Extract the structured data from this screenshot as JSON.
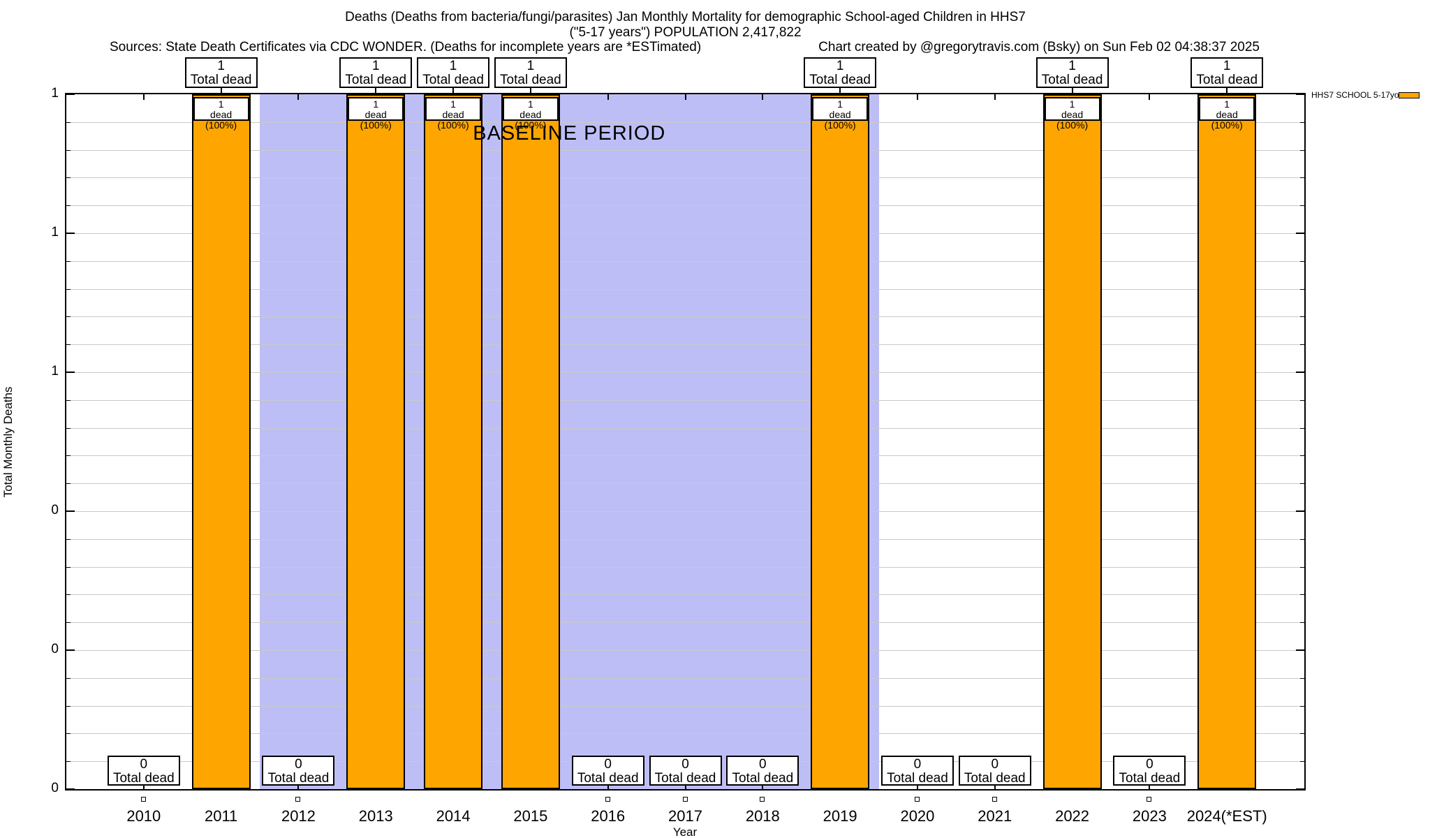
{
  "header": {
    "title_line1": "Deaths (Deaths from bacteria/fungi/parasites) Jan Monthly Mortality for demographic School-aged Children in HHS7",
    "title_line2": "(\"5-17 years\") POPULATION 2,417,822",
    "sources": "Sources: State Death Certificates via CDC WONDER. (Deaths for incomplete years are *ESTimated)",
    "credit": "Chart created by @gregorytravis.com (Bsky) on Sun Feb 02 04:38:37 2025"
  },
  "legend": {
    "label": "HHS7 SCHOOL 5-17yo",
    "swatch_color": "#FFA500",
    "position": "top-right"
  },
  "chart_data": {
    "type": "bar",
    "title": "Deaths (Deaths from bacteria/fungi/parasites) Jan Monthly Mortality for demographic School-aged Children in HHS7 (\"5-17 years\") POPULATION 2,417,822",
    "xlabel": "Year",
    "ylabel": "Total Monthly Deaths",
    "categories": [
      "2010",
      "2011",
      "2012",
      "2013",
      "2014",
      "2015",
      "2016",
      "2017",
      "2018",
      "2019",
      "2020",
      "2021",
      "2022",
      "2023",
      "2024(*EST)"
    ],
    "values": [
      0,
      1,
      0,
      1,
      1,
      1,
      0,
      0,
      0,
      1,
      0,
      0,
      1,
      0,
      1
    ],
    "bar_color": "#FFA500",
    "bar_border_color": "#000000",
    "ylim": [
      0,
      1
    ],
    "xlim": [
      2009,
      2025
    ],
    "ytick_values": [
      1,
      0.8,
      0.6,
      0.4,
      0.2,
      0
    ],
    "ytick_labels": [
      "1",
      "1",
      "1",
      "0",
      "0",
      "0"
    ],
    "grid": true,
    "grid_color": "#c9c9c9",
    "legend_position": "top-right",
    "labels": {
      "total_dead_suffix": "Total dead",
      "in_bar_suffix": "dead (100%)"
    },
    "annotations": [
      {
        "text": "BASELINE PERIOD",
        "x_from": 2011.5,
        "x_to": 2019.5,
        "fill_color": "#BEBEF7",
        "text_color": "#000000"
      }
    ]
  }
}
